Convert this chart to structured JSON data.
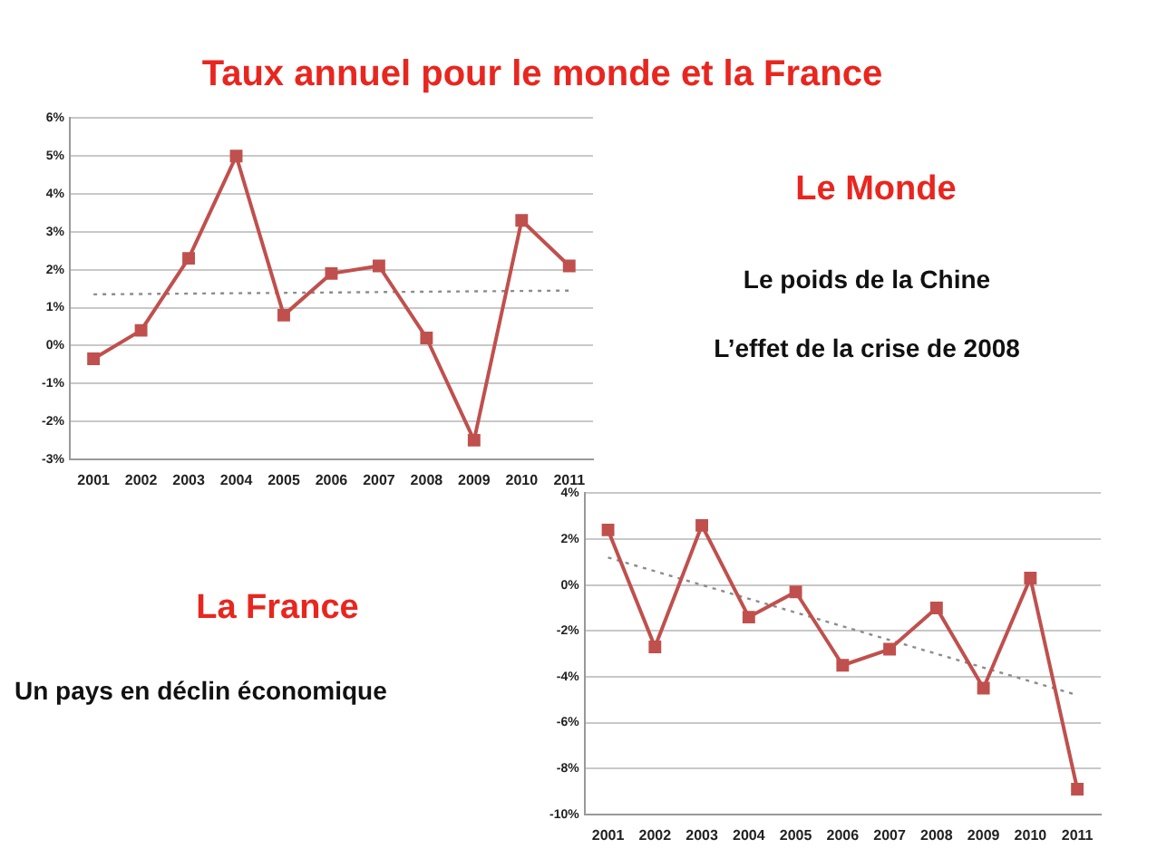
{
  "chart_data": [
    {
      "type": "line",
      "title": "Taux annuel pour le monde et la France",
      "annotations": [
        "Le Monde",
        "Le poids de la Chine",
        "L’effet de la crise de 2008"
      ],
      "categories": [
        "2001",
        "2002",
        "2003",
        "2004",
        "2005",
        "2006",
        "2007",
        "2008",
        "2009",
        "2010",
        "2011"
      ],
      "series": [
        {
          "color": "#c0504d",
          "marker": "square",
          "line_style": "solid",
          "values": [
            -0.35,
            0.4,
            2.3,
            5.0,
            0.8,
            1.9,
            2.1,
            0.2,
            -2.5,
            3.3,
            2.1
          ]
        },
        {
          "type": "line",
          "color": "#8c8c8c",
          "marker": "none",
          "line_style": "dotted",
          "values": [
            1.35,
            1.36,
            1.37,
            1.38,
            1.39,
            1.4,
            1.41,
            1.42,
            1.43,
            1.44,
            1.45
          ]
        }
      ],
      "ylim": [
        -3,
        6
      ],
      "yticks": [
        {
          "value": -3,
          "label": "-3%"
        },
        {
          "value": -2,
          "label": "-2%"
        },
        {
          "value": -1,
          "label": "-1%"
        },
        {
          "value": 0,
          "label": "0%"
        },
        {
          "value": 1,
          "label": "1%"
        },
        {
          "value": 2,
          "label": "2%"
        },
        {
          "value": 3,
          "label": "3%"
        },
        {
          "value": 4,
          "label": "4%"
        },
        {
          "value": 5,
          "label": "5%"
        },
        {
          "value": 6,
          "label": "6%"
        }
      ],
      "grid": "y",
      "legend": false
    },
    {
      "type": "line",
      "title": "La France",
      "annotations": [
        "Un pays en déclin économique"
      ],
      "categories": [
        "2001",
        "2002",
        "2003",
        "2004",
        "2005",
        "2006",
        "2007",
        "2008",
        "2009",
        "2010",
        "2011"
      ],
      "series": [
        {
          "color": "#c0504d",
          "marker": "square",
          "line_style": "solid",
          "values": [
            2.4,
            -2.7,
            2.6,
            -1.4,
            -0.3,
            -3.5,
            -2.8,
            -1.0,
            -4.5,
            0.3,
            -8.9
          ]
        },
        {
          "type": "line",
          "color": "#8c8c8c",
          "marker": "none",
          "line_style": "dotted",
          "values": [
            1.2,
            0.6,
            0,
            -0.6,
            -1.2,
            -1.8,
            -2.4,
            -3.0,
            -3.6,
            -4.2,
            -4.8
          ]
        }
      ],
      "ylim": [
        -10,
        4
      ],
      "yticks": [
        {
          "value": -10,
          "label": "-10%"
        },
        {
          "value": -8,
          "label": "-8%"
        },
        {
          "value": -6,
          "label": "-6%"
        },
        {
          "value": -4,
          "label": "-4%"
        },
        {
          "value": -2,
          "label": "-2%"
        },
        {
          "value": 0,
          "label": "0%"
        },
        {
          "value": 2,
          "label": "2%"
        },
        {
          "value": 4,
          "label": "4%"
        }
      ],
      "grid": "y",
      "legend": false
    }
  ]
}
